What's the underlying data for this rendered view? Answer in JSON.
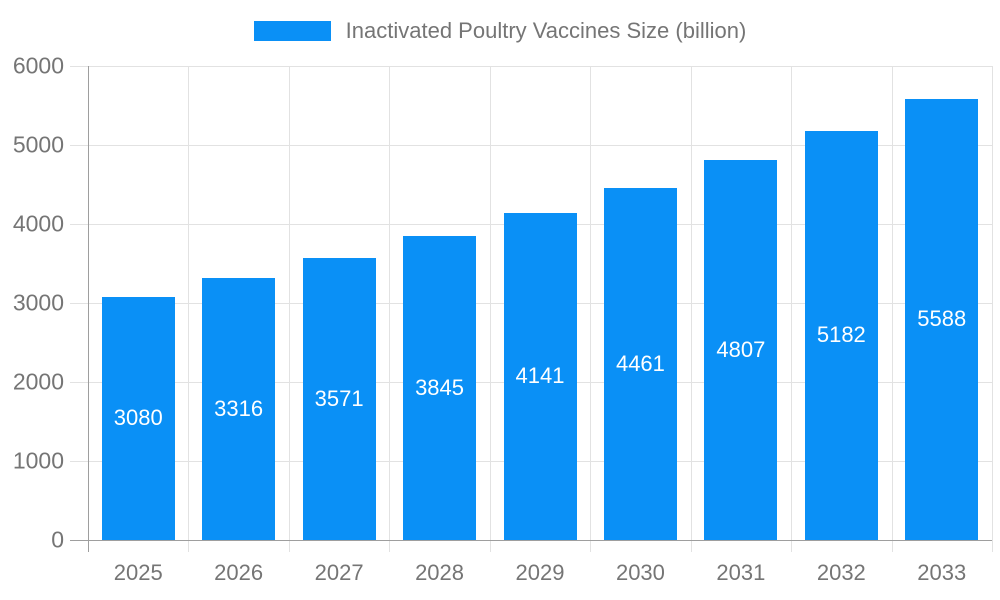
{
  "legend": {
    "label": "Inactivated Poultry Vaccines Size (billion)",
    "swatch_color": "#0a90f6"
  },
  "chart_data": {
    "type": "bar",
    "title": "Inactivated Poultry Vaccines Size (billion)",
    "categories": [
      "2025",
      "2026",
      "2027",
      "2028",
      "2029",
      "2030",
      "2031",
      "2032",
      "2033"
    ],
    "values": [
      3080,
      3316,
      3571,
      3845,
      4141,
      4461,
      4807,
      5182,
      5588
    ],
    "series_name": "Inactivated Poultry Vaccines Size (billion)",
    "xlabel": "",
    "ylabel": "",
    "ylim": [
      0,
      6000
    ],
    "yticks": [
      0,
      1000,
      2000,
      3000,
      4000,
      5000,
      6000
    ],
    "grid": true,
    "legend_position": "top",
    "bar_color": "#0a90f6",
    "bar_label_color": "#ffffff",
    "axis_text_color": "#757575",
    "gridline_color": "#e2e2e2",
    "axisline_color": "#9e9e9e"
  }
}
